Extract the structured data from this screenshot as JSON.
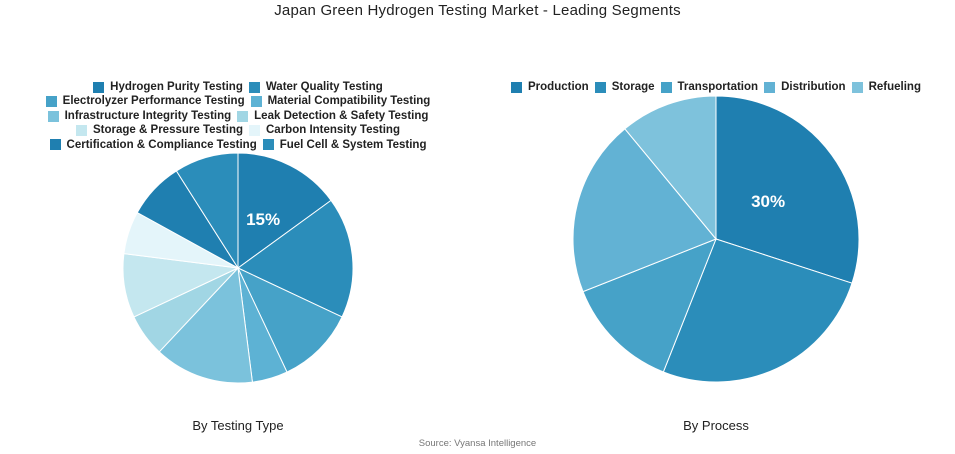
{
  "title": "Japan Green Hydrogen Testing Market - Leading Segments",
  "source": "Source: Vyansa Intelligence",
  "chart_data": [
    {
      "type": "pie",
      "caption": "By Testing Type",
      "legend_placement": "top",
      "categories": [
        "Hydrogen Purity Testing",
        "Water Quality Testing",
        "Electrolyzer Performance Testing",
        "Material Compatibility Testing",
        "Infrastructure Integrity Testing",
        "Leak Detection & Safety Testing",
        "Storage & Pressure Testing",
        "Carbon Intensity Testing",
        "Certification & Compliance Testing",
        "Fuel Cell & System Testing"
      ],
      "values": [
        15,
        17,
        11,
        5,
        14,
        6,
        9,
        6,
        8,
        9
      ],
      "colors": [
        "#1f7fb0",
        "#2b8dba",
        "#46a2c8",
        "#5db2d4",
        "#7bc2dc",
        "#a1d6e4",
        "#c4e7ef",
        "#e4f5fa",
        "#1f7fb0",
        "#2b8dba"
      ],
      "data_labels": [
        "15%",
        "",
        "",
        "",
        "",
        "",
        "",
        "",
        "",
        ""
      ]
    },
    {
      "type": "pie",
      "caption": "By Process",
      "legend_placement": "top",
      "categories": [
        "Production",
        "Storage",
        "Transportation",
        "Distribution",
        "Refueling"
      ],
      "values": [
        30,
        26,
        13,
        20,
        11
      ],
      "colors": [
        "#1f7fb0",
        "#2b8dba",
        "#46a2c8",
        "#62b2d4",
        "#7ec2dc"
      ],
      "data_labels": [
        "30%",
        "",
        "",
        "",
        ""
      ]
    }
  ]
}
